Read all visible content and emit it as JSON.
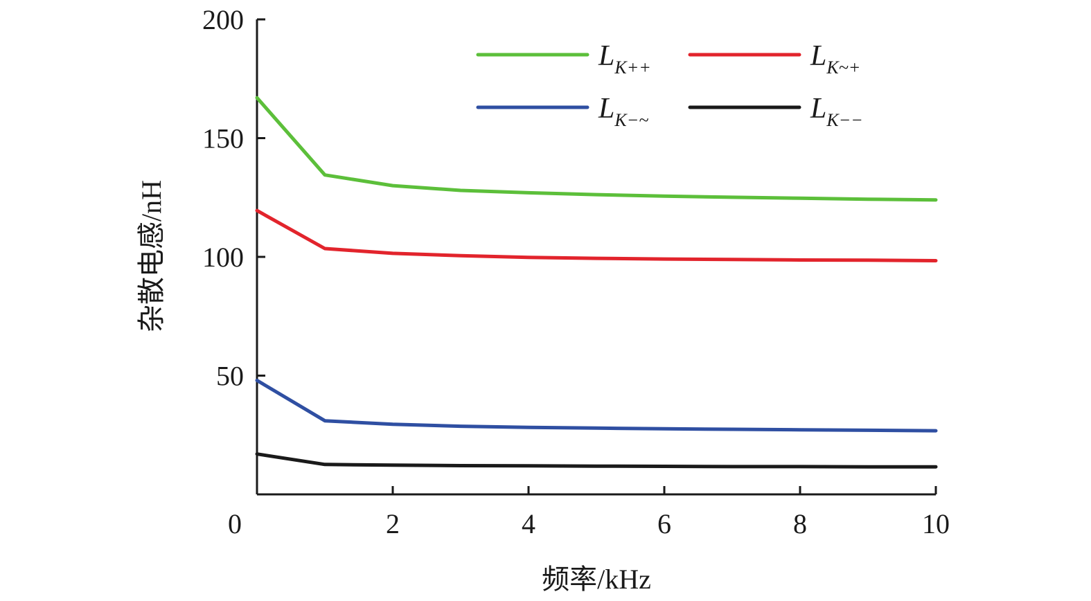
{
  "chart_data": {
    "type": "line",
    "title": "",
    "xlabel": "频率/kHz",
    "ylabel": "杂散电感/nH",
    "xlim": [
      0,
      10
    ],
    "ylim": [
      0,
      200
    ],
    "x_ticks": [
      "0",
      "2",
      "4",
      "6",
      "8",
      "10"
    ],
    "y_ticks": [
      "50",
      "100",
      "150",
      "200"
    ],
    "grid": false,
    "legend_position": "top-right",
    "x": [
      0,
      1,
      2,
      3,
      4,
      5,
      6,
      7,
      8,
      9,
      10
    ],
    "series": [
      {
        "name": "L",
        "subscript": "K++",
        "color": "#5cbf3a",
        "values": [
          167,
          134.5,
          130,
          128,
          127,
          126.2,
          125.6,
          125.1,
          124.7,
          124.3,
          124
        ]
      },
      {
        "name": "L",
        "subscript": "K~+",
        "color": "#e2242c",
        "values": [
          119.5,
          103.5,
          101.5,
          100.5,
          99.8,
          99.4,
          99.1,
          98.9,
          98.7,
          98.6,
          98.4
        ]
      },
      {
        "name": "L",
        "subscript": "K−~",
        "color": "#2f4fa2",
        "values": [
          48,
          31,
          29.5,
          28.7,
          28.2,
          27.9,
          27.6,
          27.4,
          27.2,
          27.0,
          26.8
        ]
      },
      {
        "name": "L",
        "subscript": "K−−",
        "color": "#1a1a1a",
        "values": [
          17,
          12.6,
          12.3,
          12.1,
          12.0,
          11.9,
          11.8,
          11.7,
          11.7,
          11.6,
          11.6
        ]
      }
    ]
  }
}
